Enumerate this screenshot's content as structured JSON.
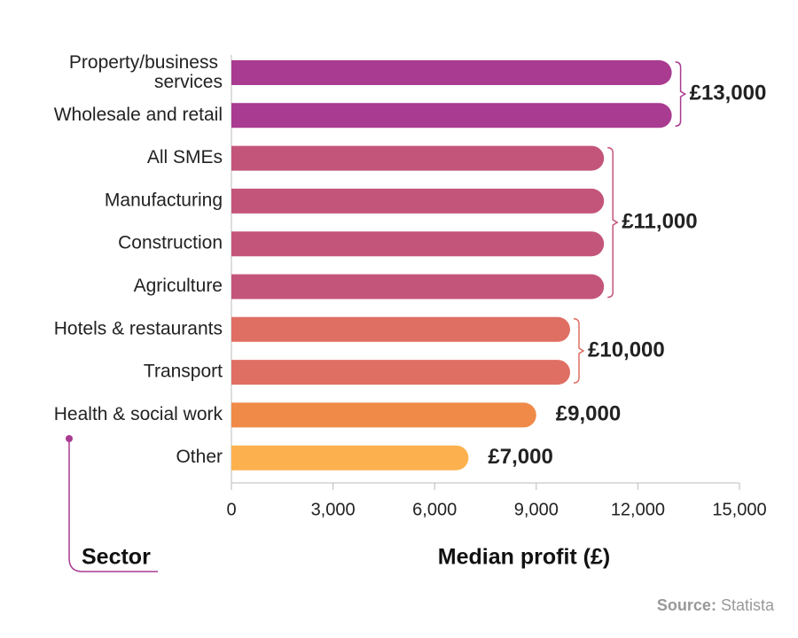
{
  "chart_data": {
    "type": "bar",
    "orientation": "horizontal",
    "categories": [
      "Property/business services",
      "Wholesale and retail",
      "All SMEs",
      "Manufacturing",
      "Construction",
      "Agriculture",
      "Hotels & restaurants",
      "Transport",
      "Health & social work",
      "Other"
    ],
    "values": [
      13000,
      13000,
      11000,
      11000,
      11000,
      11000,
      10000,
      10000,
      9000,
      7000
    ],
    "value_labels": [
      "£13,000",
      null,
      "£11,000",
      null,
      null,
      null,
      "£10,000",
      null,
      "£9,000",
      "£7,000"
    ],
    "colors": [
      "#a93b91",
      "#a93b91",
      "#c4557a",
      "#c4557a",
      "#c4557a",
      "#c4557a",
      "#df6f63",
      "#df6f63",
      "#ef8a48",
      "#fdb14e"
    ],
    "xlim": [
      0,
      15000
    ],
    "xticks": [
      0,
      {
        "value": 3000,
        "label": "3,000"
      },
      {
        "value": 6000,
        "label": "6,000"
      },
      {
        "value": 9000,
        "label": "9,000"
      },
      {
        "value": 12000,
        "label": "12,000"
      },
      {
        "value": 15000,
        "label": "15,000"
      }
    ],
    "y_label": "Sector",
    "x_label": "Median profit (£)",
    "source": {
      "label": "Source:",
      "text": "Statista"
    }
  }
}
